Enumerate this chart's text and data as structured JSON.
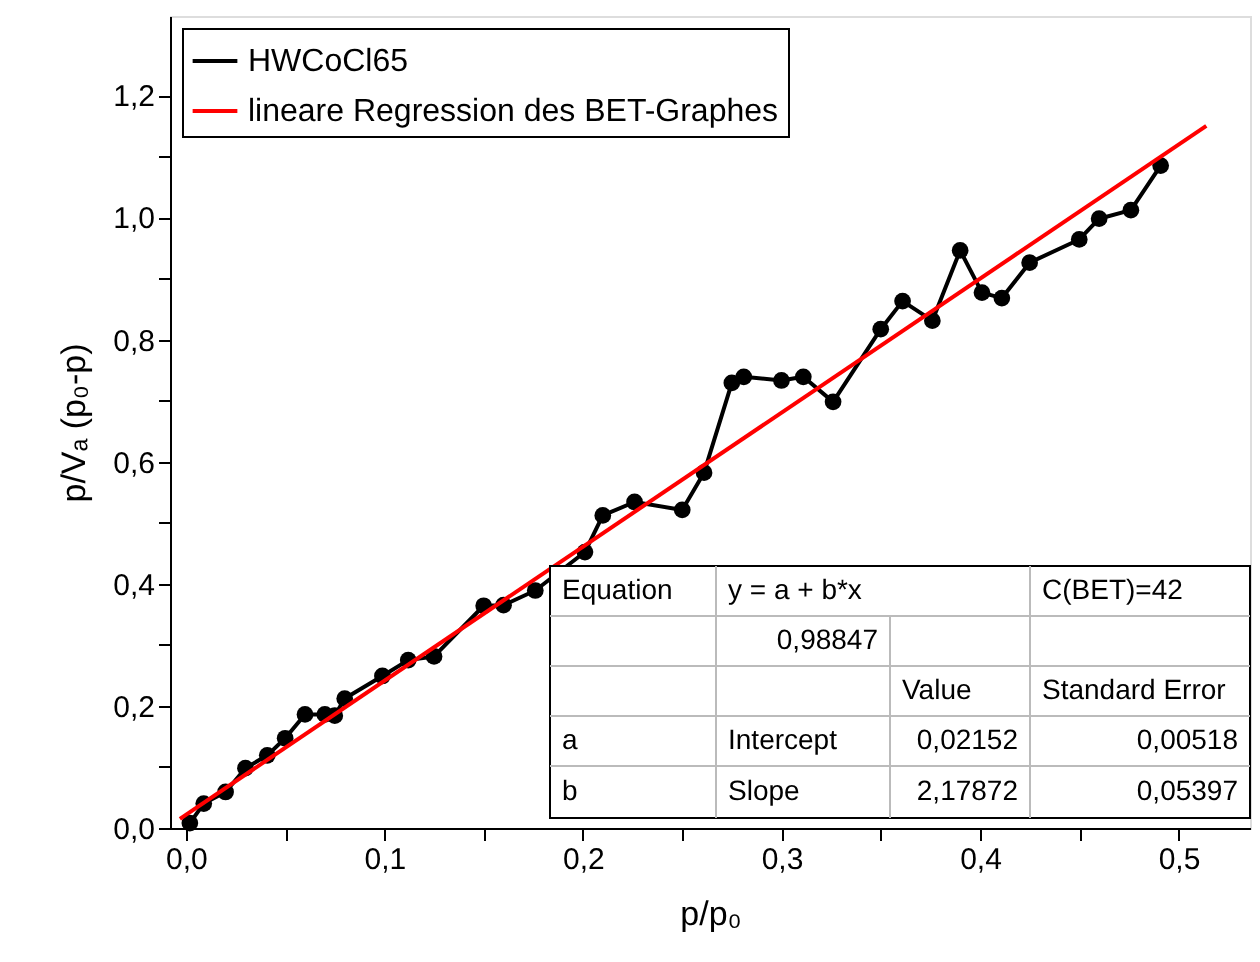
{
  "chart_data": {
    "type": "line",
    "xlabel": "p/p₀",
    "ylabel": "p/Vₐ (p₀-p)",
    "xlim": [
      -0.008,
      0.536
    ],
    "ylim": [
      0,
      1.33
    ],
    "xticks": [
      {
        "value": 0,
        "label": "0,0"
      },
      {
        "value": 0.05,
        "label": null
      },
      {
        "value": 0.1,
        "label": "0,1"
      },
      {
        "value": 0.15,
        "label": null
      },
      {
        "value": 0.2,
        "label": "0,2"
      },
      {
        "value": 0.25,
        "label": null
      },
      {
        "value": 0.3,
        "label": "0,3"
      },
      {
        "value": 0.35,
        "label": null
      },
      {
        "value": 0.4,
        "label": "0,4"
      },
      {
        "value": 0.45,
        "label": null
      },
      {
        "value": 0.5,
        "label": "0,5"
      }
    ],
    "yticks": [
      {
        "value": 0,
        "label": "0,0"
      },
      {
        "value": 0.1,
        "label": null
      },
      {
        "value": 0.2,
        "label": "0,2"
      },
      {
        "value": 0.3,
        "label": null
      },
      {
        "value": 0.4,
        "label": "0,4"
      },
      {
        "value": 0.5,
        "label": null
      },
      {
        "value": 0.6,
        "label": "0,6"
      },
      {
        "value": 0.7,
        "label": null
      },
      {
        "value": 0.8,
        "label": "0,8"
      },
      {
        "value": 0.9,
        "label": null
      },
      {
        "value": 1.0,
        "label": "1,0"
      },
      {
        "value": 1.1,
        "label": null
      },
      {
        "value": 1.2,
        "label": "1,2"
      }
    ],
    "grid": false,
    "legend": "top left",
    "series": [
      {
        "name": "HWCoCl65",
        "color": "#000000",
        "marker": "circle",
        "x": [
          0.002,
          0.009,
          0.02,
          0.03,
          0.041,
          0.05,
          0.06,
          0.07,
          0.075,
          0.08,
          0.099,
          0.112,
          0.125,
          0.15,
          0.16,
          0.176,
          0.201,
          0.21,
          0.226,
          0.25,
          0.261,
          0.275,
          0.281,
          0.3,
          0.311,
          0.326,
          0.35,
          0.361,
          0.376,
          0.39,
          0.401,
          0.411,
          0.425,
          0.45,
          0.46,
          0.476,
          0.491
        ],
        "values": [
          0.008,
          0.04,
          0.059,
          0.098,
          0.119,
          0.147,
          0.186,
          0.186,
          0.184,
          0.212,
          0.249,
          0.275,
          0.281,
          0.364,
          0.365,
          0.389,
          0.452,
          0.512,
          0.534,
          0.521,
          0.582,
          0.729,
          0.739,
          0.733,
          0.739,
          0.698,
          0.817,
          0.863,
          0.831,
          0.946,
          0.877,
          0.868,
          0.926,
          0.964,
          0.998,
          1.012,
          1.085
        ]
      },
      {
        "name": "lineare Regression des BET-Graphes",
        "color": "#ff0000",
        "type": "line",
        "marker": "none",
        "x": [
          -0.003,
          0.514
        ],
        "values": [
          0.015,
          1.15
        ]
      }
    ],
    "annotations": [
      "Equation",
      "y = a + b*x",
      "C(BET)=42",
      "0,98847",
      "Value",
      "Standard Error",
      "a",
      "Intercept",
      "0,02152",
      "0,00518",
      "b",
      "Slope",
      "2,17872",
      "0,05397"
    ]
  }
}
